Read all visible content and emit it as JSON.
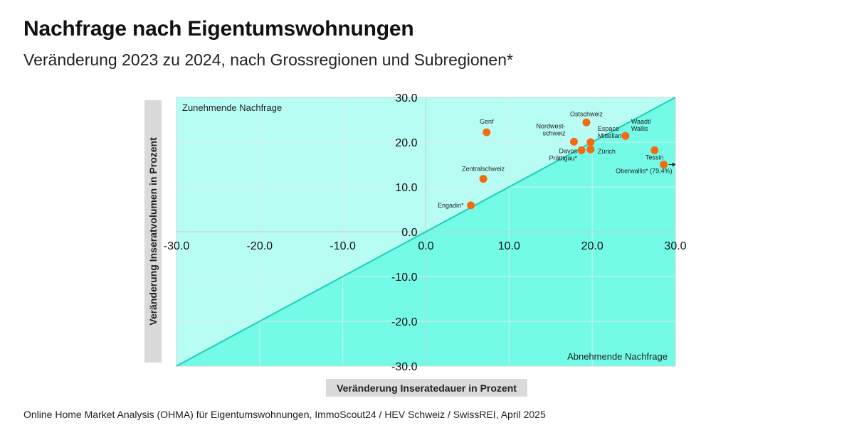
{
  "title": "Nachfrage nach Eigentumswohnungen",
  "subtitle": "Veränderung 2023 zu 2024, nach Grossregionen und Subregionen*",
  "source": "Online Home Market Analysis (OHMA) für Eigentumswohnungen, ImmoScout24 / HEV Schweiz / SwissREI, April 2025",
  "colors": {
    "upper_region": "#b8fdf4",
    "lower_region": "#74fbe7",
    "diagonal": "#1ccfb6",
    "grid": "#d3eeea",
    "point": "#f26b0f",
    "axis_label_box": "#dadada"
  },
  "chart_data": {
    "type": "scatter",
    "xlabel": "Veränderung Inseratedauer in Prozent",
    "ylabel": "Veränderung Inseratvolumen in Prozent",
    "xlim": [
      -30,
      30
    ],
    "ylim": [
      -30,
      30
    ],
    "x_ticks": [
      "-30.0",
      "-20.0",
      "-10.0",
      "0.0",
      "10.0",
      "20.0",
      "30.0"
    ],
    "y_ticks": [
      "30.0",
      "20.0",
      "10.0",
      "0.0",
      "-10.0",
      "-20.0",
      "-30.0"
    ],
    "grid": true,
    "region_labels": {
      "upper_left": "Zunehmende Nachfrage",
      "lower_right": "Abnehmende Nachfrage"
    },
    "points": [
      {
        "name": "Genf",
        "x": 7.3,
        "y": 22.2
      },
      {
        "name": "Ostschweiz",
        "x": 19.3,
        "y": 24.4
      },
      {
        "name": "Nordwest-\nschweiz",
        "x": 17.8,
        "y": 20.1
      },
      {
        "name": "Espace\nMittelland",
        "x": 19.8,
        "y": 20.0
      },
      {
        "name": "Zürich",
        "x": 19.8,
        "y": 18.4
      },
      {
        "name": "Davos\nPrättigau*",
        "x": 18.7,
        "y": 18.2
      },
      {
        "name": "Waadt/\nWallis",
        "x": 24.0,
        "y": 21.4
      },
      {
        "name": "Tessin",
        "x": 27.5,
        "y": 18.2
      },
      {
        "name": "Oberwallis* (79,4%)",
        "x": 28.6,
        "y": 15.0,
        "offscale": true
      },
      {
        "name": "Zentralschweiz",
        "x": 6.9,
        "y": 11.8
      },
      {
        "name": "Engadin*",
        "x": 5.4,
        "y": 5.9
      }
    ]
  }
}
